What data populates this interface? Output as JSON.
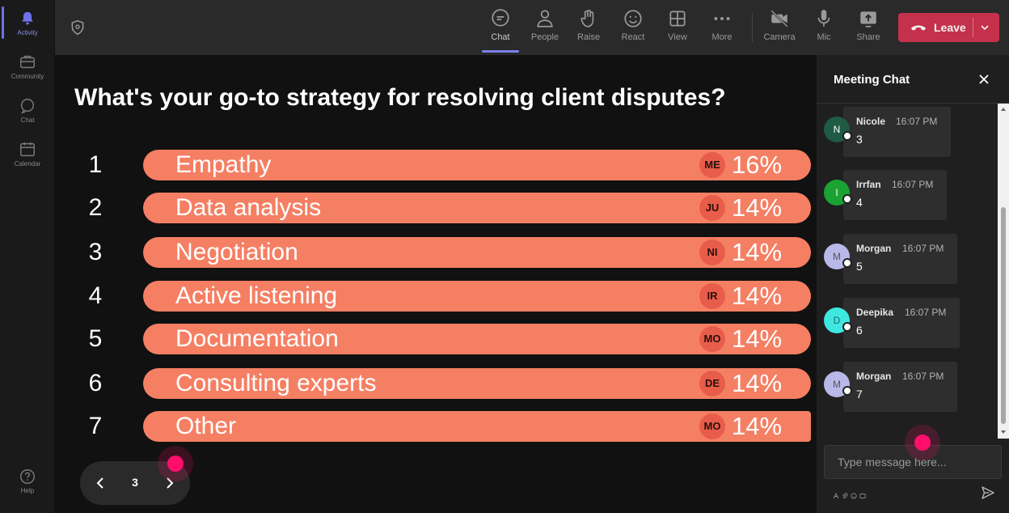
{
  "rail": {
    "items": [
      {
        "label": "Activity",
        "icon": "bell-icon"
      },
      {
        "label": "Community",
        "icon": "community-icon"
      },
      {
        "label": "Chat",
        "icon": "chat-icon"
      },
      {
        "label": "Calendar",
        "icon": "calendar-icon"
      }
    ],
    "help": {
      "label": "Help",
      "icon": "help-icon"
    }
  },
  "toolbar": {
    "buttons": [
      {
        "label": "Chat",
        "icon": "chat-icon"
      },
      {
        "label": "People",
        "icon": "people-icon"
      },
      {
        "label": "Raise",
        "icon": "hand-icon"
      },
      {
        "label": "React",
        "icon": "emoji-icon"
      },
      {
        "label": "View",
        "icon": "grid-icon"
      },
      {
        "label": "More",
        "icon": "more-icon"
      },
      {
        "label": "Camera",
        "icon": "camera-off-icon"
      },
      {
        "label": "Mic",
        "icon": "mic-icon"
      },
      {
        "label": "Share",
        "icon": "share-icon"
      }
    ],
    "leave_label": "Leave",
    "leave_color": "#c4314b"
  },
  "poll": {
    "question": "What's your go-to strategy for resolving client disputes?",
    "bar_color": "#f57f63",
    "options": [
      {
        "num": "1",
        "label": "Empathy",
        "voter": "ME",
        "percent": "16%"
      },
      {
        "num": "2",
        "label": "Data analysis",
        "voter": "JU",
        "percent": "14%"
      },
      {
        "num": "3",
        "label": "Negotiation",
        "voter": "NI",
        "percent": "14%"
      },
      {
        "num": "4",
        "label": "Active listening",
        "voter": "IR",
        "percent": "14%"
      },
      {
        "num": "5",
        "label": "Documentation",
        "voter": "MO",
        "percent": "14%"
      },
      {
        "num": "6",
        "label": "Consulting experts",
        "voter": "DE",
        "percent": "14%"
      },
      {
        "num": "7",
        "label": "Other",
        "voter": "MO",
        "percent": "14%"
      }
    ],
    "page": "3"
  },
  "chat": {
    "title": "Meeting Chat",
    "messages": [
      {
        "initial": "N",
        "name": "Nicole",
        "time": "16:07 PM",
        "text": "3",
        "avatar_color": "#1e5a44",
        "initial_color": "#ffffff"
      },
      {
        "initial": "I",
        "name": "Irrfan",
        "time": "16:07 PM",
        "text": "4",
        "avatar_color": "#1aa233",
        "initial_color": "#ffffff"
      },
      {
        "initial": "M",
        "name": "Morgan",
        "time": "16:07 PM",
        "text": "5",
        "avatar_color": "#b8b9e8",
        "initial_color": "#555555"
      },
      {
        "initial": "D",
        "name": "Deepika",
        "time": "16:07 PM",
        "text": "6",
        "avatar_color": "#3ee8e0",
        "initial_color": "#226666"
      },
      {
        "initial": "M",
        "name": "Morgan",
        "time": "16:07 PM",
        "text": "7",
        "avatar_color": "#b8b9e8",
        "initial_color": "#555555"
      }
    ],
    "input_placeholder": "Type message here..."
  }
}
